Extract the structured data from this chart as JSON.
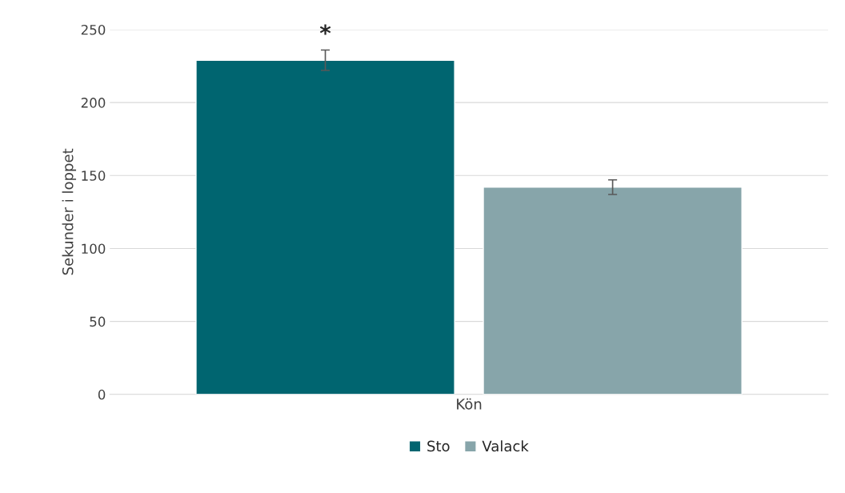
{
  "chart_data": {
    "type": "bar",
    "ylabel": "Sekunder i loppet",
    "categories": [
      "Kön"
    ],
    "series": [
      {
        "name": "Sto",
        "color": "#006570",
        "values": [
          229
        ],
        "errors": [
          7
        ]
      },
      {
        "name": "Valack",
        "color": "#87a5aa",
        "values": [
          142
        ],
        "errors": [
          5
        ]
      }
    ],
    "ylim": [
      0,
      250
    ],
    "yticks": [
      0,
      50,
      100,
      150,
      200,
      250
    ],
    "grid": "y",
    "legend": "bottom",
    "annotations": [
      "*"
    ]
  }
}
